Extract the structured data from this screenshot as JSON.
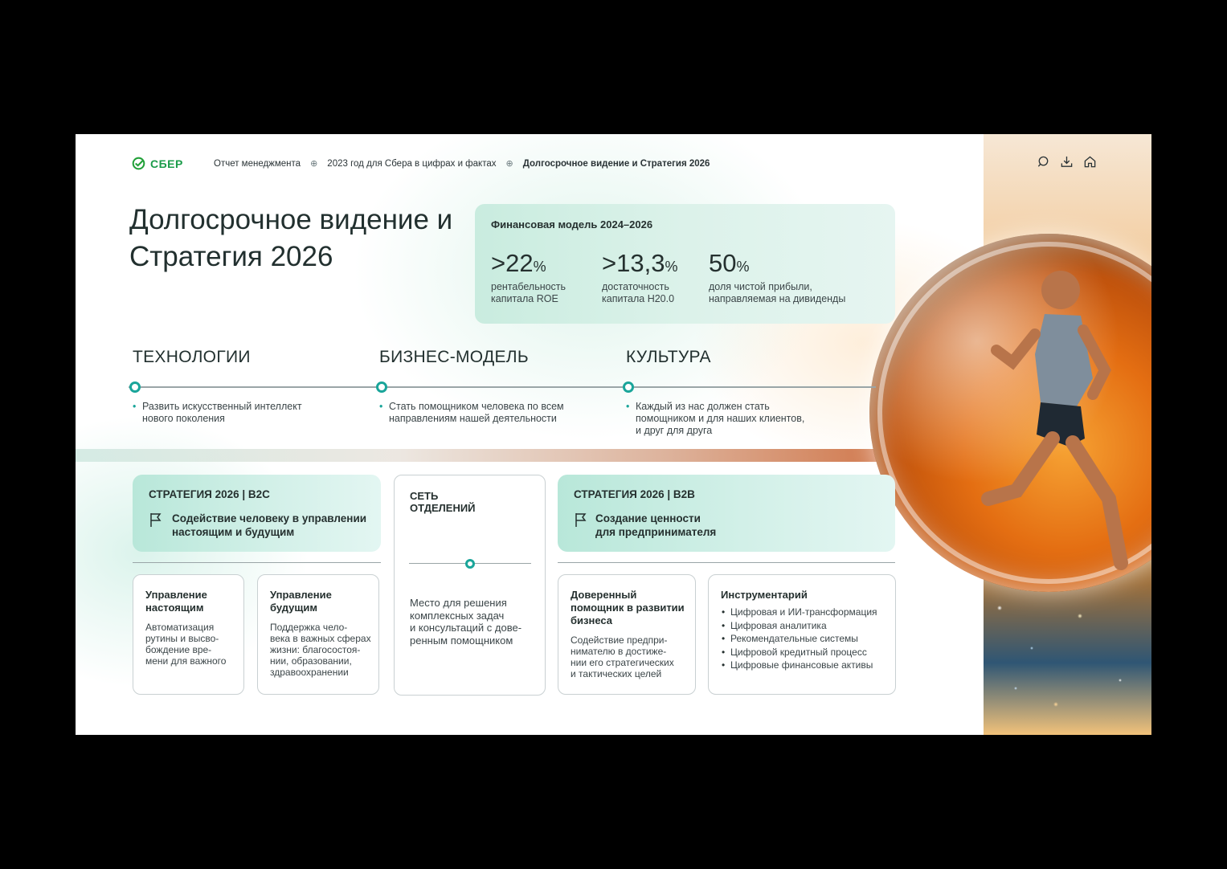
{
  "brand": {
    "logo_text": "СБЕР",
    "accent": "#1b9c4a",
    "teal": "#1aa59a"
  },
  "breadcrumb": {
    "items": [
      "Отчет менеджмента",
      "2023 год для Сбера в цифрах и фактах",
      "Долгосрочное видение и Стратегия 2026"
    ]
  },
  "toolbar": {
    "icons": [
      "search-icon",
      "download-icon",
      "home-icon"
    ]
  },
  "title": "Долгосрочное видение и Стратегия 2026",
  "financial_model": {
    "title": "Финансовая модель 2024–2026",
    "metrics": [
      {
        "value": ">22",
        "unit": "%",
        "label": "рентабельность\nкапитала ROE"
      },
      {
        "value": ">13,3",
        "unit": "%",
        "label": "достаточность\nкапитала Н20.0"
      },
      {
        "value": "50",
        "unit": "%",
        "label": "доля чистой прибыли,\nнаправляемая на дивиденды"
      }
    ]
  },
  "pillars": [
    {
      "title": "ТЕХНОЛОГИИ",
      "text": "Развить искусственный интеллект\nнового поколения"
    },
    {
      "title": "БИЗНЕС-МОДЕЛЬ",
      "text": "Стать помощником человека по всем\nнаправлениям нашей деятельности"
    },
    {
      "title": "КУЛЬТУРА",
      "text": "Каждый из нас должен стать\nпомощником и для наших клиентов,\nи друг для друга"
    }
  ],
  "b2c": {
    "title": "СТРАТЕГИЯ 2026 | B2C",
    "goal": "Содействие человеку в управлении\nнастоящим и будущим",
    "cards": [
      {
        "title": "Управление\nнастоящим",
        "text": "Автоматизация\nрутины и высво-\nбождение вре-\nмени для важного"
      },
      {
        "title": "Управление\nбудущим",
        "text": "Поддержка чело-\nвека в важных сферах\nжизни: благосостоя-\nнии, образовании,\nздравоохранении"
      }
    ]
  },
  "network": {
    "title": "СЕТЬ\nОТДЕЛЕНИЙ",
    "text": "Место для решения\nкомплексных задач\nи консультаций с дове-\nренным помощником"
  },
  "b2b": {
    "title": "СТРАТЕГИЯ 2026 | B2B",
    "goal": "Создание ценности\nдля предпринимателя",
    "card_assistant": {
      "title": "Доверенный\nпомощник в развитии\nбизнеса",
      "text": "Содействие предпри-\nнимателю в достиже-\nнии его стратегических\nи тактических целей"
    },
    "card_tools": {
      "title": "Инструментарий",
      "items": [
        "Цифровая и ИИ-трансформация",
        "Цифровая аналитика",
        "Рекомендательные системы",
        "Цифровой кредитный процесс",
        "Цифровые финансовые активы"
      ]
    }
  }
}
